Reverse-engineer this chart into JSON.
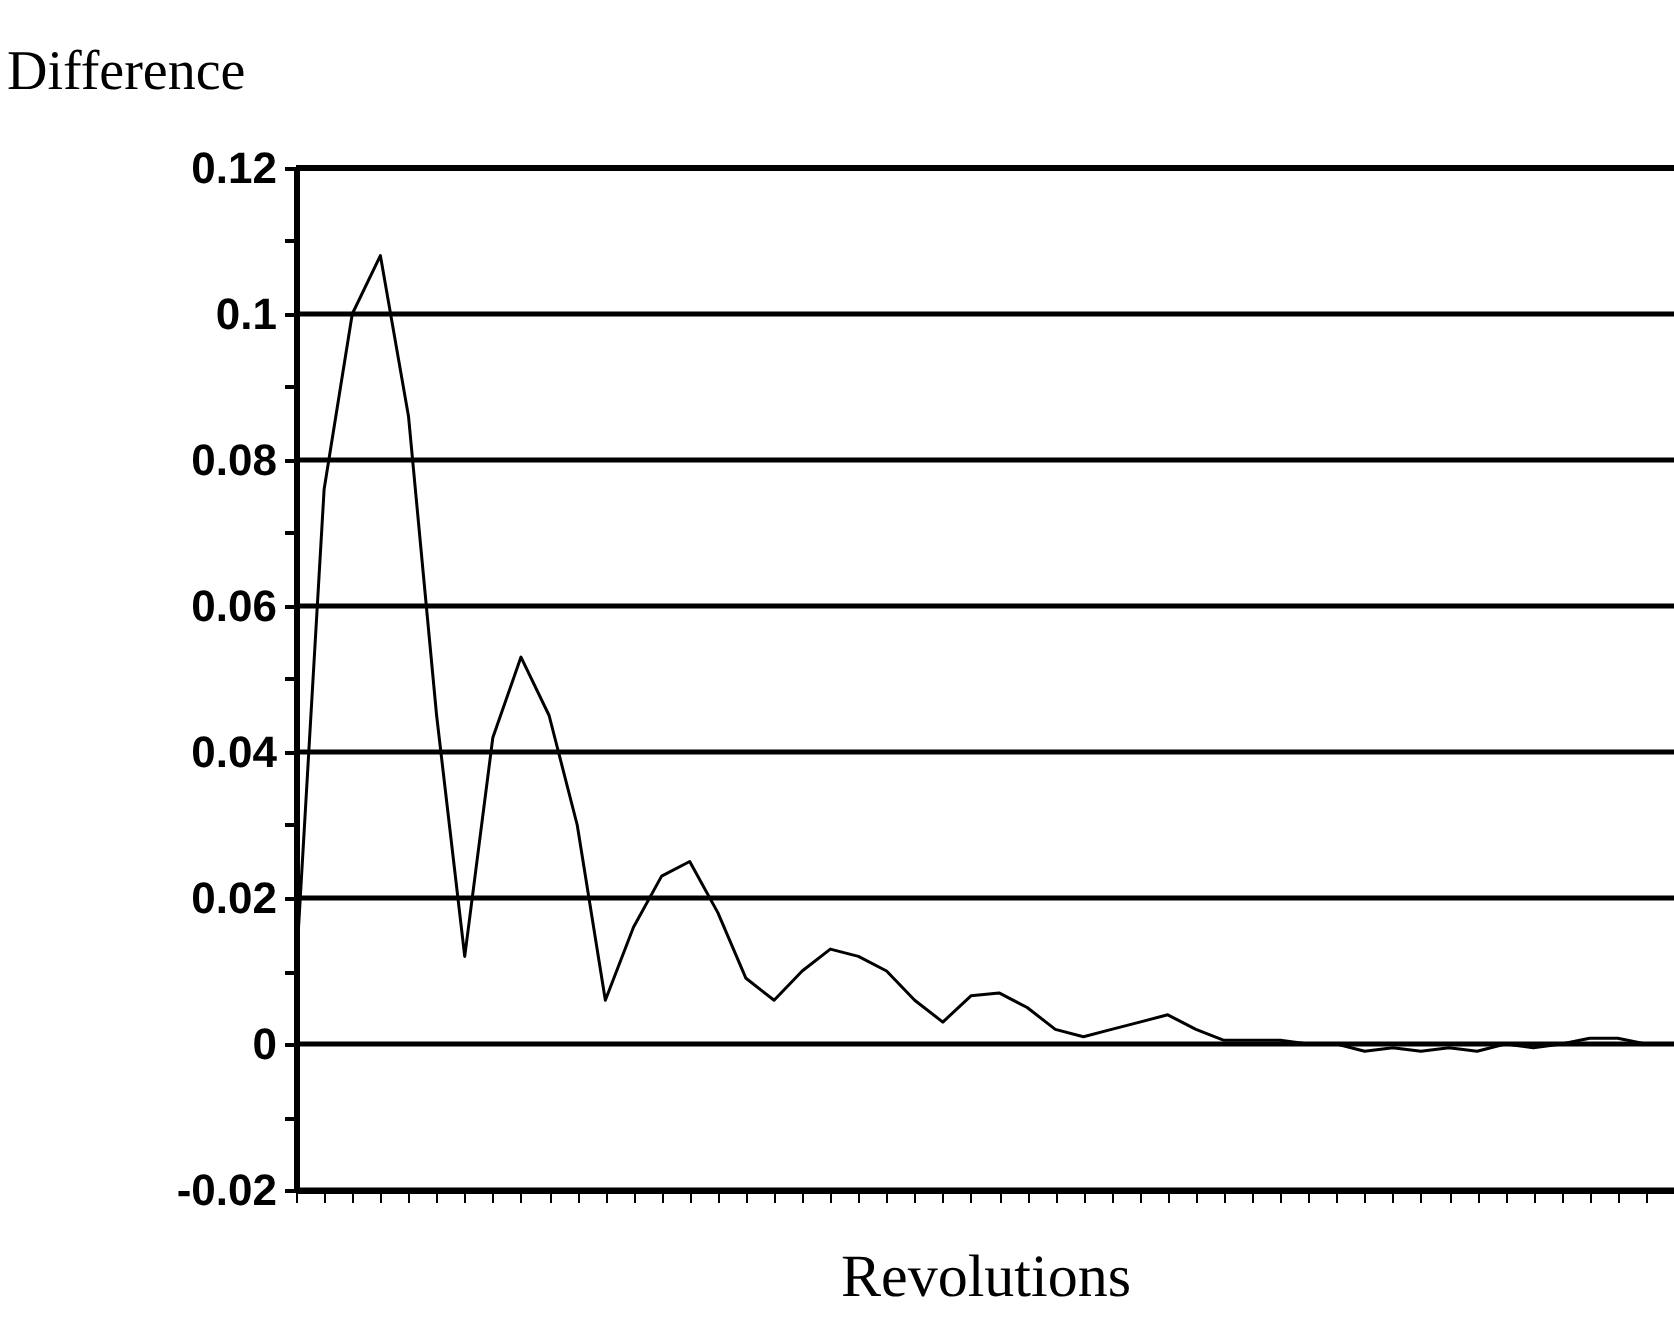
{
  "chart_data": {
    "type": "line",
    "xlabel": "Revolutions",
    "ylabel": "Difference",
    "categories": [
      null,
      null,
      null,
      null,
      null,
      null,
      null,
      null,
      null,
      null,
      null,
      null,
      null,
      null,
      null,
      null,
      null,
      null,
      null,
      null,
      null,
      null,
      null,
      null,
      null,
      null,
      null,
      null,
      null,
      null,
      null,
      null,
      null,
      null,
      null,
      null,
      null,
      null,
      null,
      null,
      null,
      null,
      null,
      null,
      null,
      null,
      null,
      null,
      null,
      null
    ],
    "series": [
      {
        "color": "#000000",
        "values": [
          0.01,
          0.076,
          0.1,
          0.108,
          0.086,
          0.045,
          0.012,
          0.042,
          0.053,
          0.045,
          0.03,
          0.006,
          0.016,
          0.023,
          0.025,
          0.018,
          0.009,
          0.006,
          0.01,
          0.013,
          0.012,
          0.01,
          0.006,
          0.003,
          0.0066,
          0.007,
          0.005,
          0.002,
          0.001,
          0.002,
          0.003,
          0.004,
          0.002,
          0.0005,
          0.0005,
          0.0005,
          0,
          0,
          -0.001,
          -0.0005,
          -0.001,
          -0.0005,
          -0.001,
          0,
          -0.0005,
          0,
          0.0008,
          0.0008,
          0,
          0
        ]
      }
    ],
    "ylim": [
      -0.02,
      0.12
    ],
    "yticks": [
      -0.02,
      {
        "value": -0.01,
        "label": null
      },
      0,
      {
        "value": 0.01,
        "label": null
      },
      0.02,
      {
        "value": 0.03,
        "label": null
      },
      0.04,
      {
        "value": 0.05,
        "label": null
      },
      0.06,
      {
        "value": 0.07,
        "label": null
      },
      0.08,
      {
        "value": 0.09,
        "label": null
      },
      0.1,
      {
        "value": 0.11,
        "label": null
      },
      0.12
    ],
    "grid": "y",
    "marker": "none",
    "line_style": "solid"
  }
}
